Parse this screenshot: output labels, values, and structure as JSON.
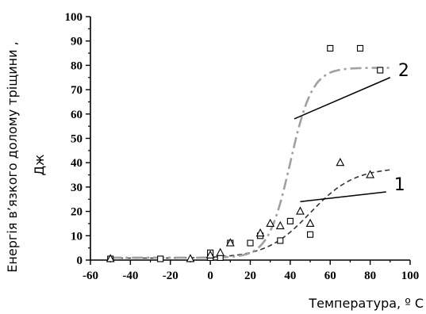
{
  "chart_data": {
    "type": "scatter",
    "title": "",
    "xlabel": "Температура, º С",
    "ylabel_line1": "Енергія в’язкого долому тріщини ,",
    "ylabel_line2": "Дж",
    "xlim": [
      -60,
      100
    ],
    "ylim": [
      0,
      100
    ],
    "x_ticks": [
      "-60",
      "-40",
      "-20",
      "0",
      "20",
      "40",
      "60",
      "80",
      "100"
    ],
    "x_tick_values": [
      -60,
      -40,
      -20,
      0,
      20,
      40,
      60,
      80,
      100
    ],
    "y_ticks": [
      "0",
      "10",
      "20",
      "30",
      "40",
      "50",
      "60",
      "70",
      "80",
      "90",
      "100"
    ],
    "y_tick_values": [
      0,
      10,
      20,
      30,
      40,
      50,
      60,
      70,
      80,
      90,
      100
    ],
    "grid": false,
    "series": [
      {
        "key": "squares",
        "marker": "square",
        "points": [
          {
            "x": -50,
            "y": 0.5
          },
          {
            "x": -25,
            "y": 0.5
          },
          {
            "x": 0,
            "y": 1
          },
          {
            "x": 0,
            "y": 3
          },
          {
            "x": 5,
            "y": 1
          },
          {
            "x": 10,
            "y": 7
          },
          {
            "x": 20,
            "y": 7
          },
          {
            "x": 25,
            "y": 10
          },
          {
            "x": 35,
            "y": 8
          },
          {
            "x": 40,
            "y": 16
          },
          {
            "x": 50,
            "y": 10.5
          },
          {
            "x": 60,
            "y": 87
          },
          {
            "x": 75,
            "y": 87
          },
          {
            "x": 85,
            "y": 78
          }
        ]
      },
      {
        "key": "triangles",
        "marker": "triangle",
        "points": [
          {
            "x": -50,
            "y": 0.5
          },
          {
            "x": -10,
            "y": 0.5
          },
          {
            "x": 0,
            "y": 2
          },
          {
            "x": 5,
            "y": 3
          },
          {
            "x": 10,
            "y": 7
          },
          {
            "x": 25,
            "y": 11
          },
          {
            "x": 30,
            "y": 15
          },
          {
            "x": 35,
            "y": 14
          },
          {
            "x": 45,
            "y": 20
          },
          {
            "x": 50,
            "y": 15
          },
          {
            "x": 65,
            "y": 40
          },
          {
            "x": 80,
            "y": 35
          }
        ]
      }
    ],
    "fit_curves": [
      {
        "label": "1",
        "style": "dashed",
        "color": "#333333",
        "lower": 0.8,
        "upper": 38,
        "mid": 50,
        "width": 11,
        "x_range": [
          -50,
          90
        ]
      },
      {
        "label": "2",
        "style": "dash-dot",
        "color": "#a0a0a0",
        "lower": 1.0,
        "upper": 79,
        "mid": 40,
        "width": 5.5,
        "x_range": [
          -50,
          90
        ]
      }
    ],
    "callouts": [
      {
        "label": "1",
        "from": [
          45,
          24
        ],
        "to": [
          88,
          28
        ]
      },
      {
        "label": "2",
        "from": [
          42,
          58
        ],
        "to": [
          90,
          75
        ]
      }
    ]
  }
}
